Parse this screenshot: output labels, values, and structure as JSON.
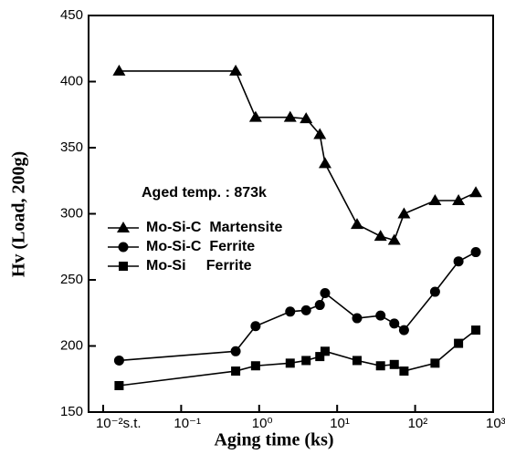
{
  "chart_data": {
    "type": "line",
    "x_label": "Aging time (ks)",
    "y_label": "Hv (Load, 200g)",
    "annotation": "Aged temp. : 873k",
    "xscale": "log",
    "xlim": [
      0.0065,
      1000
    ],
    "xticks": [
      {
        "value": 0.01,
        "label": "10⁻²s.t."
      },
      {
        "value": 0.1,
        "label": "10⁻¹"
      },
      {
        "value": 1,
        "label": "10⁰"
      },
      {
        "value": 10,
        "label": "10¹"
      },
      {
        "value": 100,
        "label": "10²"
      },
      {
        "value": 1000,
        "label": "10³"
      }
    ],
    "ylim": [
      150,
      450
    ],
    "yticks": [
      150,
      200,
      250,
      300,
      350,
      400,
      450
    ],
    "x": [
      0.016,
      0.5,
      0.9,
      2.5,
      4,
      6,
      7,
      18,
      36,
      54,
      72,
      180,
      360,
      600
    ],
    "legend": "upper left",
    "series": [
      {
        "name": "Mo-Si-C  Martensite",
        "color": "#000000",
        "marker": "triangle",
        "values": [
          408,
          408,
          373,
          373,
          372,
          360,
          338,
          292,
          283,
          280,
          300,
          310,
          310,
          316
        ]
      },
      {
        "name": "Mo-Si-C  Ferrite",
        "color": "#000000",
        "marker": "circle",
        "values": [
          189,
          196,
          215,
          226,
          227,
          231,
          240,
          221,
          223,
          217,
          212,
          241,
          264,
          271
        ]
      },
      {
        "name": "Mo-Si     Ferrite",
        "color": "#000000",
        "marker": "square",
        "values": [
          170,
          181,
          185,
          187,
          189,
          192,
          196,
          189,
          185,
          186,
          181,
          187,
          202,
          212
        ]
      }
    ]
  }
}
